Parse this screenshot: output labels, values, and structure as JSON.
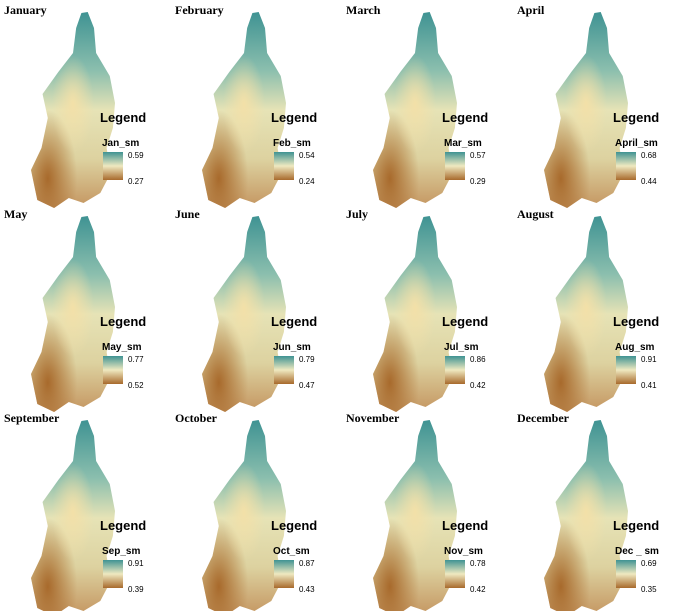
{
  "maps": [
    {
      "title": "January",
      "legend_title": "Legend",
      "field": "Jan_sm",
      "max": 0.59,
      "min": 0.27
    },
    {
      "title": "February",
      "legend_title": "Legend",
      "field": "Feb_sm",
      "max": 0.54,
      "min": 0.24
    },
    {
      "title": "March",
      "legend_title": "Legend",
      "field": "Mar_sm",
      "max": 0.57,
      "min": 0.29
    },
    {
      "title": "April",
      "legend_title": "Legend",
      "field": "April_sm",
      "max": 0.68,
      "min": 0.44
    },
    {
      "title": "May",
      "legend_title": "Legend",
      "field": "May_sm",
      "max": 0.77,
      "min": 0.52
    },
    {
      "title": "June",
      "legend_title": "Legend",
      "field": "Jun_sm",
      "max": 0.79,
      "min": 0.47
    },
    {
      "title": "July",
      "legend_title": "Legend",
      "field": "Jul_sm",
      "max": 0.86,
      "min": 0.42
    },
    {
      "title": "August",
      "legend_title": "Legend",
      "field": "Aug_sm",
      "max": 0.91,
      "min": 0.41
    },
    {
      "title": "September",
      "legend_title": "Legend",
      "field": "Sep_sm",
      "max": 0.91,
      "min": 0.39
    },
    {
      "title": "October",
      "legend_title": "Legend",
      "field": "Oct_sm",
      "max": 0.87,
      "min": 0.43
    },
    {
      "title": "November",
      "legend_title": "Legend",
      "field": "Nov_sm",
      "max": 0.78,
      "min": 0.42
    },
    {
      "title": "December",
      "legend_title": "Legend",
      "field": "Dec _ sm",
      "max": 0.69,
      "min": 0.35
    }
  ]
}
